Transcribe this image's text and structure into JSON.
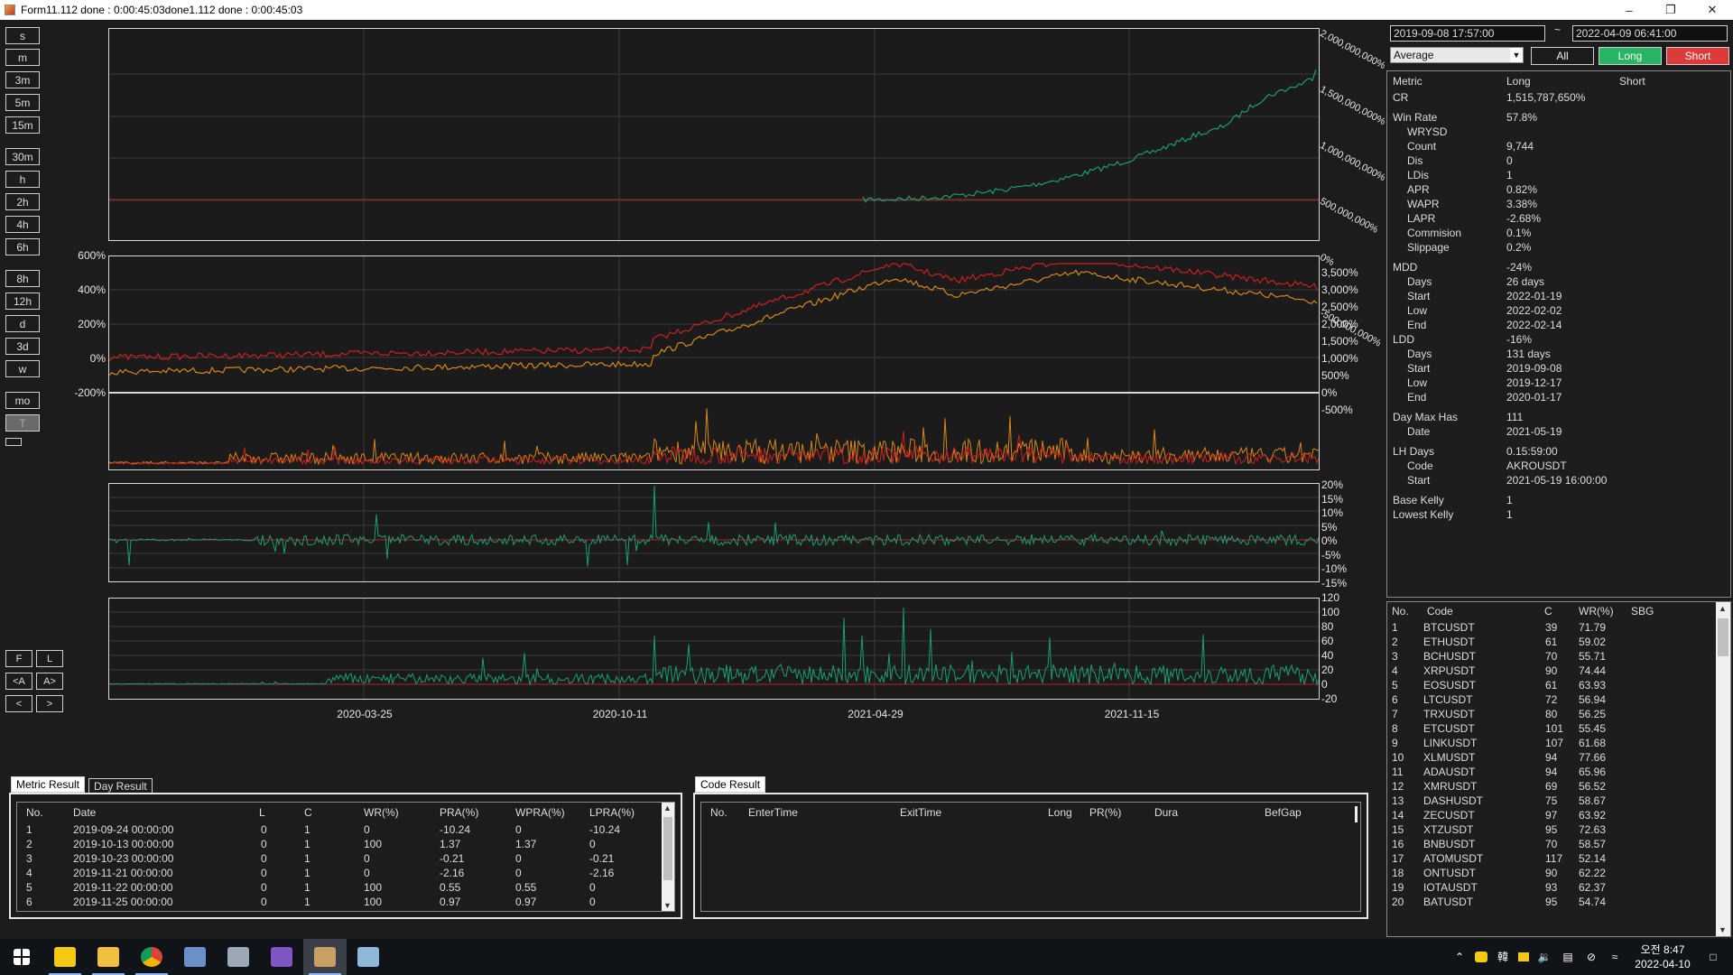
{
  "window": {
    "title": "Form11.112 done : 0:00:45:03done1.112 done : 0:00:45:03"
  },
  "timeframes": [
    "s",
    "m",
    "3m",
    "5m",
    "15m",
    "30m",
    "h",
    "2h",
    "4h",
    "6h",
    "8h",
    "12h",
    "d",
    "3d",
    "w",
    "mo",
    "T"
  ],
  "selected_timeframe": "T",
  "nav_buttons": {
    "f": "F",
    "l": "L",
    "prev_page": "<A",
    "next_page": "A>",
    "prev": "<",
    "next": ">"
  },
  "charts": {
    "panel1_y_labels": [
      "2,000,000,000%",
      "1,500,000,000%",
      "1,000,000,000%",
      "500,000,000%",
      "0%",
      "-500,000,000%"
    ],
    "panel2_left_labels": [
      "600%",
      "400%",
      "200%",
      "0%",
      "-200%"
    ],
    "panel2_right_labels": [
      "3,500%",
      "3,000%",
      "2,500%",
      "2,000%",
      "1,500%",
      "1,000%",
      "500%",
      "0%",
      "-500%"
    ],
    "panel4_labels": [
      "20%",
      "15%",
      "10%",
      "5%",
      "0%",
      "-5%",
      "-10%",
      "-15%"
    ],
    "panel5_labels": [
      "120",
      "100",
      "80",
      "60",
      "40",
      "20",
      "0",
      "-20"
    ],
    "x_labels": [
      "2020-03-25",
      "2020-10-11",
      "2021-04-29",
      "2021-11-15"
    ],
    "colors": {
      "equity": "#1a9e6e",
      "red": "#cc1f1f",
      "orange": "#d6861a",
      "baseline": "#b02020",
      "grid": "#3a3a3a"
    }
  },
  "chart_data": [
    {
      "type": "line",
      "title": "",
      "x": [
        "2020-03-25",
        "2020-10-11",
        "2021-04-29",
        "2021-11-15"
      ],
      "series": [
        {
          "values": [
            0,
            0,
            10000000,
            900000000
          ]
        }
      ],
      "ylim": [
        -500000000,
        2000000000
      ]
    },
    {
      "type": "line",
      "title": "",
      "x": [
        "2020-03-25",
        "2020-10-11",
        "2021-04-29",
        "2021-11-15"
      ],
      "series": [
        {
          "values": [
            -20,
            10,
            520,
            560
          ]
        },
        {
          "values": [
            -60,
            -20,
            440,
            520
          ]
        }
      ],
      "ylim": [
        -200,
        600
      ]
    },
    {
      "type": "line",
      "title": "",
      "x": [
        "2020-03-25",
        "2020-10-11",
        "2021-04-29",
        "2021-11-15"
      ],
      "series": [
        {
          "values": [
            0,
            0,
            1,
            0
          ]
        }
      ],
      "ylim": [
        -15,
        20
      ]
    },
    {
      "type": "line",
      "title": "",
      "x": [
        "2020-03-25",
        "2020-10-11",
        "2021-04-29",
        "2021-11-15"
      ],
      "series": [
        {
          "values": [
            10,
            30,
            40,
            30
          ]
        }
      ],
      "ylim": [
        -20,
        120
      ]
    }
  ],
  "right": {
    "start_date": "2019-09-08 17:57:00",
    "tilde": "~",
    "end_date": "2022-04-09 06:41:00",
    "mode_select": "Average",
    "btn_all": "All",
    "btn_long": "Long",
    "btn_short": "Short",
    "metric_headers": {
      "metric": "Metric",
      "long": "Long",
      "short": "Short"
    },
    "metrics": [
      {
        "k": "CR",
        "v": "1,515,787,650%",
        "i": 0
      },
      {
        "k": "Win Rate",
        "v": "57.8%",
        "i": 0,
        "gap": 1
      },
      {
        "k": "WRYSD",
        "v": "",
        "i": 1
      },
      {
        "k": "Count",
        "v": "9,744",
        "i": 1
      },
      {
        "k": "Dis",
        "v": "0",
        "i": 1
      },
      {
        "k": "LDis",
        "v": "1",
        "i": 1
      },
      {
        "k": "APR",
        "v": "0.82%",
        "i": 1
      },
      {
        "k": "WAPR",
        "v": "3.38%",
        "i": 1
      },
      {
        "k": "LAPR",
        "v": "-2.68%",
        "i": 1
      },
      {
        "k": "Commision",
        "v": "0.1%",
        "i": 1
      },
      {
        "k": "Slippage",
        "v": "0.2%",
        "i": 1
      },
      {
        "k": "MDD",
        "v": "-24%",
        "i": 0,
        "gap": 1
      },
      {
        "k": "Days",
        "v": "26 days",
        "i": 1
      },
      {
        "k": "Start",
        "v": "2022-01-19",
        "i": 1
      },
      {
        "k": "Low",
        "v": "2022-02-02",
        "i": 1
      },
      {
        "k": "End",
        "v": "2022-02-14",
        "i": 1
      },
      {
        "k": "LDD",
        "v": "-16%",
        "i": 0
      },
      {
        "k": "Days",
        "v": "131 days",
        "i": 1
      },
      {
        "k": "Start",
        "v": "2019-09-08",
        "i": 1
      },
      {
        "k": "Low",
        "v": "2019-12-17",
        "i": 1
      },
      {
        "k": "End",
        "v": "2020-01-17",
        "i": 1
      },
      {
        "k": "Day Max Has",
        "v": "111",
        "i": 0,
        "gap": 1
      },
      {
        "k": "Date",
        "v": "2021-05-19",
        "i": 1
      },
      {
        "k": "LH Days",
        "v": "0.15:59:00",
        "i": 0,
        "gap": 1
      },
      {
        "k": "Code",
        "v": "AKROUSDT",
        "i": 1
      },
      {
        "k": "Start",
        "v": "2021-05-19 16:00:00",
        "i": 1
      },
      {
        "k": "Base Kelly",
        "v": "1",
        "i": 0,
        "gap": 1
      },
      {
        "k": "Lowest Kelly",
        "v": "1",
        "i": 0
      }
    ],
    "code_headers": {
      "no": "No.",
      "code": "Code",
      "c": "C",
      "wr": "WR(%)",
      "sbg": "SBG"
    },
    "codes": [
      [
        "1",
        "BTCUSDT",
        "39",
        "71.79"
      ],
      [
        "2",
        "ETHUSDT",
        "61",
        "59.02"
      ],
      [
        "3",
        "BCHUSDT",
        "70",
        "55.71"
      ],
      [
        "4",
        "XRPUSDT",
        "90",
        "74.44"
      ],
      [
        "5",
        "EOSUSDT",
        "61",
        "63.93"
      ],
      [
        "6",
        "LTCUSDT",
        "72",
        "56.94"
      ],
      [
        "7",
        "TRXUSDT",
        "80",
        "56.25"
      ],
      [
        "8",
        "ETCUSDT",
        "101",
        "55.45"
      ],
      [
        "9",
        "LINKUSDT",
        "107",
        "61.68"
      ],
      [
        "10",
        "XLMUSDT",
        "94",
        "77.66"
      ],
      [
        "11",
        "ADAUSDT",
        "94",
        "65.96"
      ],
      [
        "12",
        "XMRUSDT",
        "69",
        "56.52"
      ],
      [
        "13",
        "DASHUSDT",
        "75",
        "58.67"
      ],
      [
        "14",
        "ZECUSDT",
        "97",
        "63.92"
      ],
      [
        "15",
        "XTZUSDT",
        "95",
        "72.63"
      ],
      [
        "16",
        "BNBUSDT",
        "70",
        "58.57"
      ],
      [
        "17",
        "ATOMUSDT",
        "117",
        "52.14"
      ],
      [
        "18",
        "ONTUSDT",
        "90",
        "62.22"
      ],
      [
        "19",
        "IOTAUSDT",
        "93",
        "62.37"
      ],
      [
        "20",
        "BATUSDT",
        "95",
        "54.74"
      ]
    ]
  },
  "bottom_left": {
    "tab_metric": "Metric Result",
    "tab_day": "Day Result",
    "headers": [
      "No.",
      "Date",
      "L",
      "C",
      "WR(%)",
      "PRA(%)",
      "WPRA(%)",
      "LPRA(%)"
    ],
    "rows": [
      [
        "1",
        "2019-09-24 00:00:00",
        "0",
        "1",
        "0",
        "-10.24",
        "0",
        "-10.24"
      ],
      [
        "2",
        "2019-10-13 00:00:00",
        "0",
        "1",
        "100",
        "1.37",
        "1.37",
        "0"
      ],
      [
        "3",
        "2019-10-23 00:00:00",
        "0",
        "1",
        "0",
        "-0.21",
        "0",
        "-0.21"
      ],
      [
        "4",
        "2019-11-21 00:00:00",
        "0",
        "1",
        "0",
        "-2.16",
        "0",
        "-2.16"
      ],
      [
        "5",
        "2019-11-22 00:00:00",
        "0",
        "1",
        "100",
        "0.55",
        "0.55",
        "0"
      ],
      [
        "6",
        "2019-11-25 00:00:00",
        "0",
        "1",
        "100",
        "0.97",
        "0.97",
        "0"
      ]
    ]
  },
  "bottom_right": {
    "tab_code": "Code Result",
    "headers": [
      "No.",
      "EnterTime",
      "ExitTime",
      "Long",
      "PR(%)",
      "Dura",
      "BefGap"
    ]
  },
  "taskbar": {
    "apps": [
      "start-icon",
      "kakaotalk-icon",
      "file-explorer-icon",
      "chrome-icon",
      "network-app-icon",
      "remote-desktop-icon",
      "visual-studio-icon",
      "winform-app-icon",
      "notepad-icon"
    ],
    "time_ampm": "오전 8:47",
    "date": "2022-04-10",
    "ime": "韓"
  }
}
